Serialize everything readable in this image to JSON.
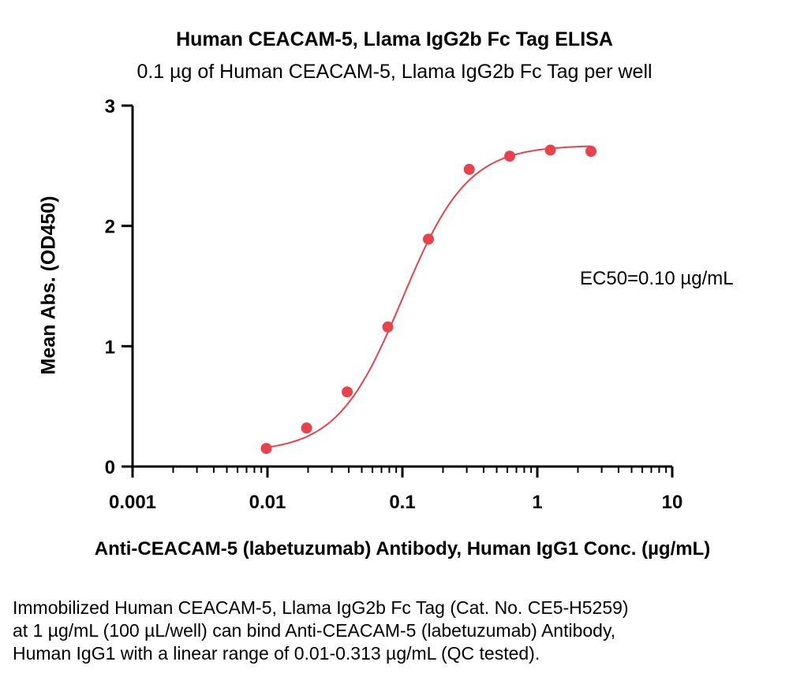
{
  "chart_data": {
    "type": "scatter",
    "title": "Human CEACAM-5, Llama IgG2b Fc Tag ELISA",
    "subtitle": "0.1 µg of Human CEACAM-5, Llama IgG2b Fc Tag per well",
    "xlabel": "Anti-CEACAM-5 (labetuzumab) Antibody, Human IgG1 Conc. (µg/mL)",
    "ylabel": "Mean Abs. (OD450)",
    "x_scale": "log",
    "xlim": [
      0.001,
      10
    ],
    "ylim": [
      0,
      3
    ],
    "x_ticks": [
      "0.001",
      "0.01",
      "0.1",
      "1",
      "10"
    ],
    "y_ticks": [
      "0",
      "1",
      "2",
      "3"
    ],
    "x_tick_values": [
      0.001,
      0.01,
      0.1,
      1,
      10
    ],
    "y_tick_values": [
      0,
      1,
      2,
      3
    ],
    "grid": false,
    "series": [
      {
        "color": "#e8424b",
        "x": [
          0.0098,
          0.0195,
          0.039,
          0.078,
          0.156,
          0.313,
          0.625,
          1.25,
          2.5
        ],
        "y": [
          0.15,
          0.32,
          0.62,
          1.16,
          1.89,
          2.47,
          2.58,
          2.63,
          2.62
        ],
        "fit": "4PL",
        "fit_params": {
          "bottom": 0.12,
          "top": 2.67,
          "ec50": 0.1,
          "hill": 1.8
        }
      }
    ],
    "annotation": "EC50=0.10 µg/mL"
  },
  "caption": "Immobilized Human CEACAM-5, Llama IgG2b Fc Tag (Cat. No. CE5-H5259) at 1 µg/mL (100 µL/well) can bind Anti-CEACAM-5 (labetuzumab) Antibody, Human IgG1 with a linear range of 0.01-0.313 µg/mL (QC tested)."
}
